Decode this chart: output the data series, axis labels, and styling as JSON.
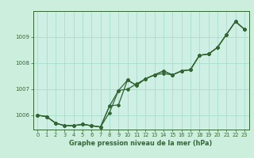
{
  "title": "Graphe pression niveau de la mer (hPa)",
  "background_color": "#cceedd",
  "plot_bg_color": "#cef0e4",
  "grid_color": "#aaddcc",
  "line_color": "#336633",
  "xlim": [
    -0.5,
    23.5
  ],
  "ylim": [
    1005.45,
    1010.0
  ],
  "yticks": [
    1006,
    1007,
    1008,
    1009
  ],
  "xticks": [
    0,
    1,
    2,
    3,
    4,
    5,
    6,
    7,
    8,
    9,
    10,
    11,
    12,
    13,
    14,
    15,
    16,
    17,
    18,
    19,
    20,
    21,
    22,
    23
  ],
  "series1": [
    1006.0,
    1005.95,
    1005.7,
    1005.6,
    1005.6,
    1005.65,
    1005.6,
    1005.55,
    1006.35,
    1006.95,
    1007.0,
    1007.2,
    1007.4,
    1007.55,
    1007.6,
    1007.55,
    1007.7,
    1007.75,
    1008.3,
    1008.35,
    1008.6,
    1009.1,
    1009.6,
    1009.3
  ],
  "series2": [
    1006.0,
    1005.95,
    1005.7,
    1005.6,
    1005.6,
    1005.65,
    1005.6,
    1005.55,
    1006.35,
    1006.4,
    1007.35,
    1007.15,
    1007.4,
    1007.55,
    1007.7,
    1007.55,
    1007.7,
    1007.75,
    1008.3,
    1008.35,
    1008.6,
    1009.1,
    1009.6,
    1009.3
  ],
  "series3": [
    1006.0,
    1005.95,
    1005.7,
    1005.6,
    1005.6,
    1005.65,
    1005.6,
    1005.55,
    1006.1,
    1006.95,
    1007.35,
    1007.15,
    1007.4,
    1007.55,
    1007.7,
    1007.55,
    1007.7,
    1007.75,
    1008.3,
    1008.35,
    1008.6,
    1009.1,
    1009.6,
    1009.3
  ]
}
